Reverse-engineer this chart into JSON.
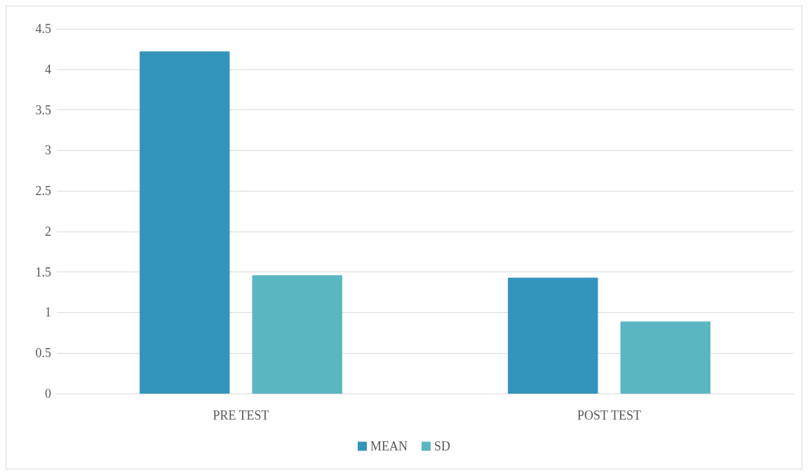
{
  "chart_data": {
    "type": "bar",
    "categories": [
      "PRE TEST",
      "POST TEST"
    ],
    "series": [
      {
        "name": "MEAN",
        "color": "#3394bc",
        "values": [
          4.22,
          1.43
        ]
      },
      {
        "name": "SD",
        "color": "#5ab6c0",
        "values": [
          1.46,
          0.89
        ]
      }
    ],
    "ylim": [
      0,
      4.5
    ],
    "yticks": [
      0,
      0.5,
      1,
      1.5,
      2,
      2.5,
      3,
      3.5,
      4,
      4.5
    ],
    "grid": "y",
    "legend": "bottom"
  }
}
